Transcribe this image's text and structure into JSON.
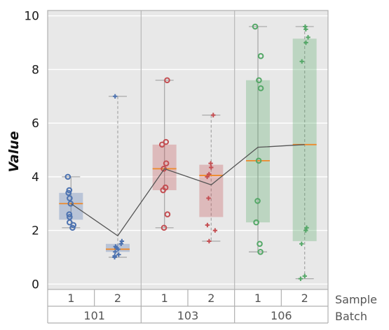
{
  "chart_data": {
    "type": "box",
    "ylabel": "Value",
    "ylim": [
      -0.2,
      10.2
    ],
    "yticks": [
      0,
      2,
      4,
      6,
      8,
      10
    ],
    "grid": true,
    "x_levels": {
      "inner": "Sample",
      "outer": "Batch"
    },
    "colors": {
      "101": "#4c72b0",
      "103": "#c44e52",
      "106": "#55a868",
      "median": "#ee8a2b",
      "mean_line": "#555555"
    },
    "groups": [
      {
        "batch": "101",
        "samples": [
          {
            "sample": "1",
            "marker": "circle",
            "q1": 2.4,
            "median": 3.0,
            "q3": 3.4,
            "whisker_low": 2.1,
            "whisker_high": 4.0,
            "mean": 3.0,
            "points": [
              4.0,
              3.5,
              3.4,
              3.2,
              3.0,
              2.6,
              2.5,
              2.3,
              2.2,
              2.1
            ]
          },
          {
            "sample": "2",
            "marker": "plus",
            "q1": 1.2,
            "median": 1.3,
            "q3": 1.5,
            "whisker_low": 1.0,
            "whisker_high": 7.0,
            "mean": 1.8,
            "points": [
              7.0,
              1.6,
              1.5,
              1.4,
              1.35,
              1.3,
              1.2,
              1.1,
              1.05,
              1.0
            ]
          }
        ]
      },
      {
        "batch": "103",
        "samples": [
          {
            "sample": "1",
            "marker": "circle",
            "q1": 3.5,
            "median": 4.3,
            "q3": 5.2,
            "whisker_low": 2.1,
            "whisker_high": 7.6,
            "mean": 4.3,
            "points": [
              7.6,
              5.3,
              5.2,
              4.5,
              4.3,
              3.6,
              3.5,
              2.6,
              2.1
            ]
          },
          {
            "sample": "2",
            "marker": "plus",
            "q1": 2.5,
            "median": 4.05,
            "q3": 4.45,
            "whisker_low": 1.6,
            "whisker_high": 6.3,
            "mean": 3.7,
            "points": [
              6.3,
              4.5,
              4.35,
              4.1,
              4.0,
              3.2,
              2.2,
              2.0,
              1.6
            ]
          }
        ]
      },
      {
        "batch": "106",
        "samples": [
          {
            "sample": "1",
            "marker": "circle",
            "q1": 2.3,
            "median": 4.6,
            "q3": 7.6,
            "whisker_low": 1.2,
            "whisker_high": 9.6,
            "mean": 5.1,
            "points": [
              9.6,
              8.5,
              7.6,
              7.3,
              4.6,
              3.1,
              2.3,
              1.5,
              1.2
            ]
          },
          {
            "sample": "2",
            "marker": "plus",
            "q1": 1.6,
            "median": 5.2,
            "q3": 9.15,
            "whisker_low": 0.2,
            "whisker_high": 9.6,
            "mean": 5.2,
            "points": [
              9.6,
              9.5,
              9.2,
              9.0,
              8.3,
              2.1,
              2.0,
              1.5,
              0.3,
              0.2
            ]
          }
        ]
      }
    ]
  }
}
